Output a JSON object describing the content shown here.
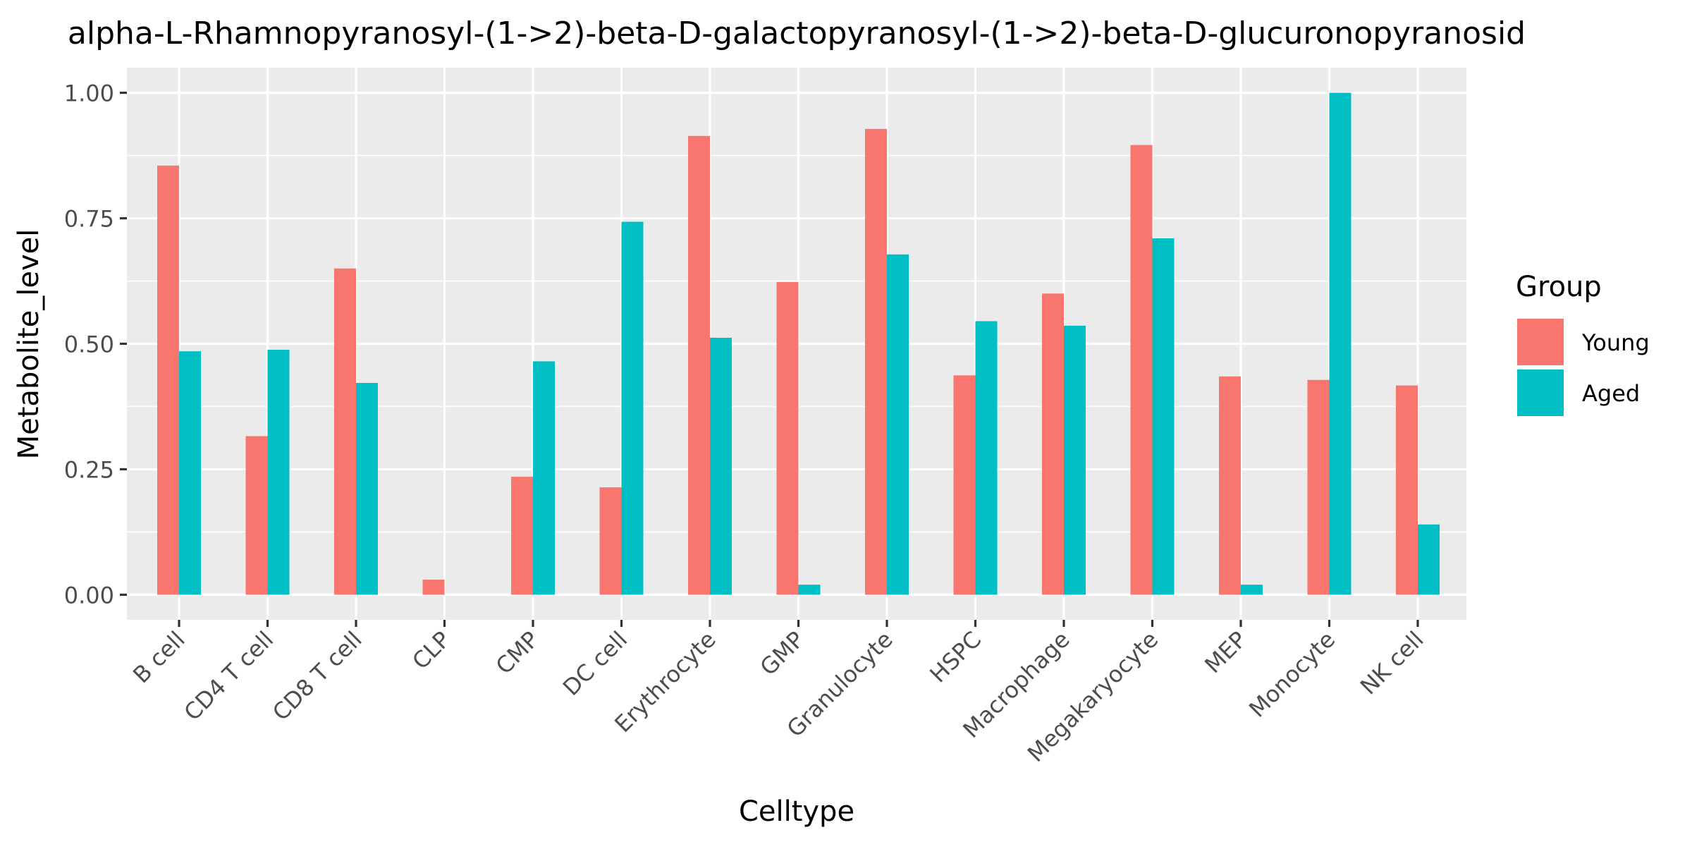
{
  "chart_data": {
    "type": "bar",
    "title": "alpha-L-Rhamnopyranosyl-(1->2)-beta-D-galactopyranosyl-(1->2)-beta-D-glucuronopyranosid",
    "xlabel": "Celltype",
    "ylabel": "Metabolite_level",
    "categories": [
      "B cell",
      "CD4 T cell",
      "CD8 T cell",
      "CLP",
      "CMP",
      "DC cell",
      "Erythrocyte",
      "GMP",
      "Granulocyte",
      "HSPC",
      "Macrophage",
      "Megakaryocyte",
      "MEP",
      "Monocyte",
      "NK cell"
    ],
    "series": [
      {
        "name": "Young",
        "color": "#F8766D",
        "values": [
          0.855,
          0.316,
          0.65,
          0.03,
          0.235,
          0.214,
          0.914,
          0.623,
          0.928,
          0.437,
          0.6,
          0.896,
          0.435,
          0.428,
          0.417
        ]
      },
      {
        "name": "Aged",
        "color": "#00BFC4",
        "values": [
          0.485,
          0.488,
          0.422,
          0.0,
          0.465,
          0.743,
          0.512,
          0.02,
          0.678,
          0.545,
          0.536,
          0.71,
          0.02,
          1.0,
          0.14
        ]
      }
    ],
    "ylim": [
      -0.05,
      1.05
    ],
    "yticks": [
      0.0,
      0.25,
      0.5,
      0.75,
      1.0
    ],
    "ytick_labels": [
      "0.00",
      "0.25",
      "0.50",
      "0.75",
      "1.00"
    ],
    "legend": {
      "title": "Group",
      "position": "right"
    },
    "grid": true,
    "panel_color": "#EBEBEB"
  }
}
